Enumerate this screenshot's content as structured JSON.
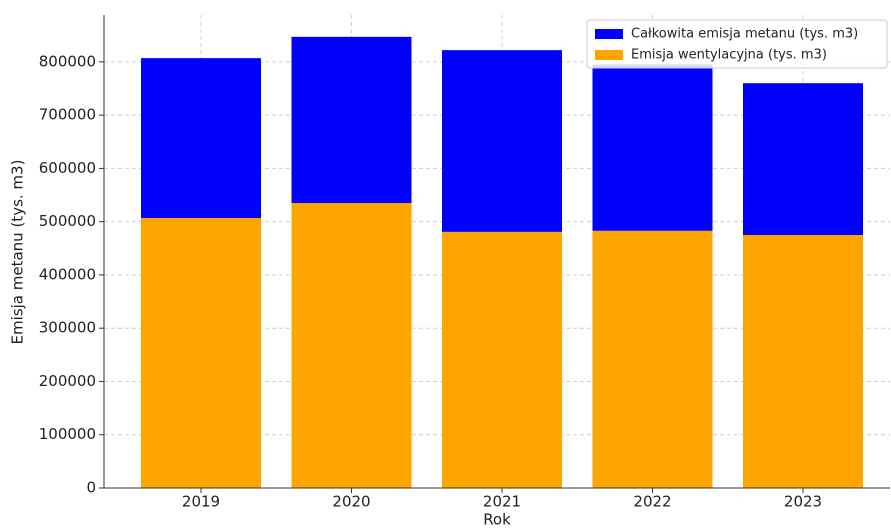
{
  "chart_data": {
    "type": "bar",
    "xlabel": "Rok",
    "ylabel": "Emisja metanu (tys. m3)",
    "categories": [
      "2019",
      "2020",
      "2021",
      "2022",
      "2023"
    ],
    "series": [
      {
        "name": "Całkowita emisja metanu (tys. m3)",
        "color": "#0000ff",
        "values": [
          807000,
          847000,
          822000,
          795000,
          760000
        ]
      },
      {
        "name": "Emisja wentylacyjna (tys. m3)",
        "color": "#ffa500",
        "values": [
          507000,
          535000,
          481000,
          483000,
          475000
        ]
      }
    ],
    "ylim": [
      0,
      888000
    ],
    "yticks": [
      0,
      100000,
      200000,
      300000,
      400000,
      500000,
      600000,
      700000,
      800000
    ],
    "grid": true,
    "legend": "upper right"
  }
}
